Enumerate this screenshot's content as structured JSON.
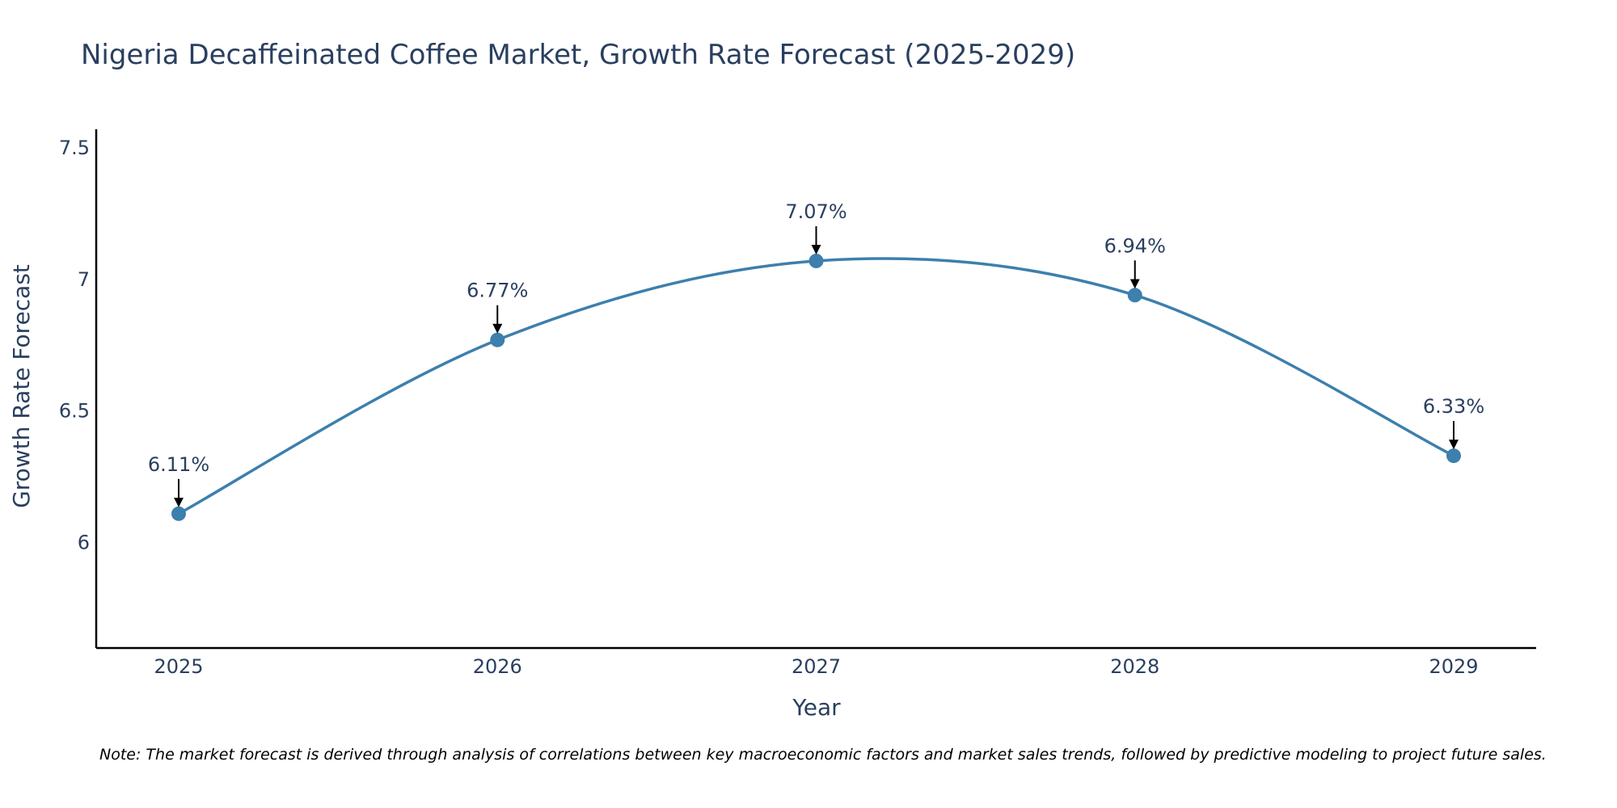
{
  "colors": {
    "line": "#3d7fad",
    "marker": "#3d7fad",
    "text": "#2a3f5f",
    "axis": "#000000",
    "arrow": "#000000"
  },
  "chart_data": {
    "type": "line",
    "title": "Nigeria Decaffeinated Coffee Market, Growth Rate Forecast (2025-2029)",
    "xlabel": "Year",
    "ylabel": "Growth Rate Forecast",
    "x": [
      "2025",
      "2026",
      "2027",
      "2028",
      "2029"
    ],
    "series": [
      {
        "name": "Growth Rate Forecast",
        "values": [
          6.11,
          6.77,
          7.07,
          6.94,
          6.33
        ]
      }
    ],
    "data_labels": [
      "6.11%",
      "6.77%",
      "7.07%",
      "6.94%",
      "6.33%"
    ],
    "ylim": [
      5.6,
      7.57
    ],
    "yticks": [
      {
        "value": 6,
        "label": "6"
      },
      {
        "value": 6.5,
        "label": "6.5"
      },
      {
        "value": 7,
        "label": "7"
      },
      {
        "value": 7.5,
        "label": "7.5"
      }
    ],
    "grid": false,
    "line_shape": "spline",
    "note": "Note: The market forecast is derived through analysis of correlations between key macroeconomic factors and market sales trends, followed by predictive modeling to project future sales."
  }
}
